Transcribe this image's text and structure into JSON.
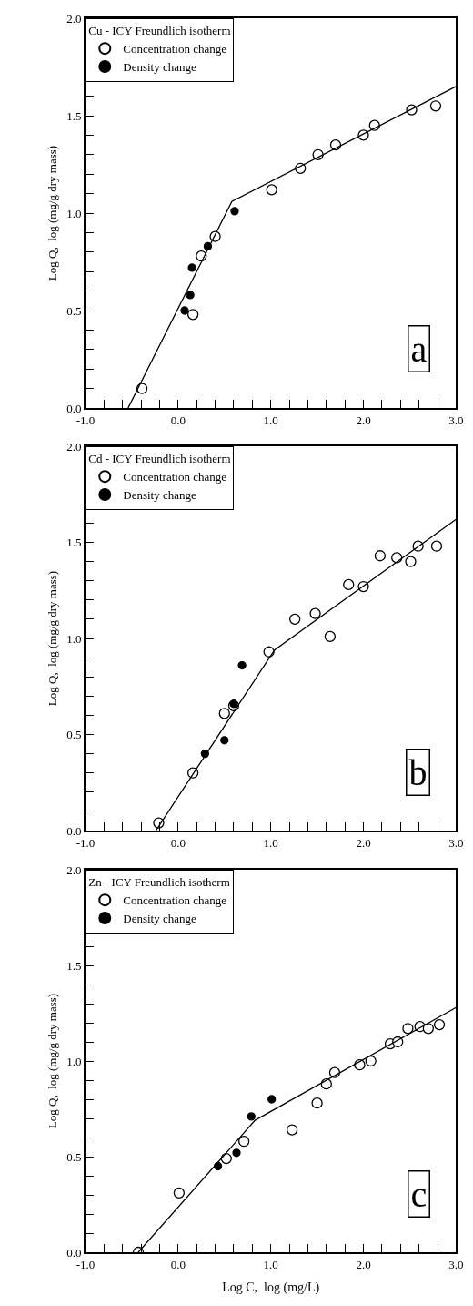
{
  "chart_data": [
    {
      "type": "scatter",
      "legend_title": "Cu - ICY Freundlich isotherm",
      "ylabel": "Log Q,  log (mg/g dry mass)",
      "annotations": [
        "a"
      ],
      "legend": "top left",
      "marker": "circle",
      "grid": false,
      "xlim": [
        -1,
        3
      ],
      "ylim": [
        0,
        2
      ],
      "xticks": [
        {
          "value": -1,
          "label": "-1.0"
        },
        {
          "value": -0.8,
          "label": null
        },
        {
          "value": -0.6,
          "label": null
        },
        {
          "value": -0.4,
          "label": null
        },
        {
          "value": -0.2,
          "label": null
        },
        {
          "value": 0,
          "label": "0.0"
        },
        {
          "value": 0.2,
          "label": null
        },
        {
          "value": 0.4,
          "label": null
        },
        {
          "value": 0.6,
          "label": null
        },
        {
          "value": 0.8,
          "label": null
        },
        {
          "value": 1,
          "label": "1.0"
        },
        {
          "value": 1.2,
          "label": null
        },
        {
          "value": 1.4,
          "label": null
        },
        {
          "value": 1.6,
          "label": null
        },
        {
          "value": 1.8,
          "label": null
        },
        {
          "value": 2,
          "label": "2.0"
        },
        {
          "value": 2.2,
          "label": null
        },
        {
          "value": 2.4,
          "label": null
        },
        {
          "value": 2.6,
          "label": null
        },
        {
          "value": 2.8,
          "label": null
        },
        {
          "value": 3,
          "label": "3.0"
        }
      ],
      "yticks": [
        {
          "value": 0,
          "label": "0.0"
        },
        {
          "value": 0.1,
          "label": null
        },
        {
          "value": 0.2,
          "label": null
        },
        {
          "value": 0.3,
          "label": null
        },
        {
          "value": 0.4,
          "label": null
        },
        {
          "value": 0.5,
          "label": "0.5"
        },
        {
          "value": 0.6,
          "label": null
        },
        {
          "value": 0.7,
          "label": null
        },
        {
          "value": 0.8,
          "label": null
        },
        {
          "value": 0.9,
          "label": null
        },
        {
          "value": 1,
          "label": "1.0"
        },
        {
          "value": 1.1,
          "label": null
        },
        {
          "value": 1.2,
          "label": null
        },
        {
          "value": 1.3,
          "label": null
        },
        {
          "value": 1.4,
          "label": null
        },
        {
          "value": 1.5,
          "label": "1.5"
        },
        {
          "value": 1.6,
          "label": null
        },
        {
          "value": 1.7,
          "label": null
        },
        {
          "value": 1.8,
          "label": null
        },
        {
          "value": 1.9,
          "label": null
        },
        {
          "value": 2,
          "label": "2.0"
        }
      ],
      "series": [
        {
          "name": "Concentration change",
          "color": "#ffffff",
          "x": [
            -0.39,
            0.16,
            0.25,
            0.4,
            1.01,
            1.32,
            1.51,
            1.7,
            2.0,
            2.12,
            2.52,
            2.78
          ],
          "values": [
            0.1,
            0.48,
            0.78,
            0.88,
            1.12,
            1.23,
            1.3,
            1.35,
            1.4,
            1.45,
            1.53,
            1.55
          ]
        },
        {
          "name": "Density change",
          "color": "#000000",
          "x": [
            0.07,
            0.13,
            0.15,
            0.32,
            0.61
          ],
          "values": [
            0.5,
            0.58,
            0.72,
            0.83,
            1.01
          ]
        },
        {
          "type": "line",
          "marker": "none",
          "color": "#000000",
          "x": [
            -0.54,
            0.58,
            3.0
          ],
          "values": [
            0,
            1.06,
            1.65
          ]
        }
      ]
    },
    {
      "type": "scatter",
      "legend_title": "Cd - ICY Freundlich isotherm",
      "ylabel": "Log Q,  log (mg/g dry mass)",
      "annotations": [
        "b"
      ],
      "legend": "top left",
      "marker": "circle",
      "grid": false,
      "xlim": [
        -1,
        3
      ],
      "ylim": [
        0,
        2
      ],
      "xticks": [
        {
          "value": -1,
          "label": "-1.0"
        },
        {
          "value": -0.8,
          "label": null
        },
        {
          "value": -0.6,
          "label": null
        },
        {
          "value": -0.4,
          "label": null
        },
        {
          "value": -0.2,
          "label": null
        },
        {
          "value": 0,
          "label": "0.0"
        },
        {
          "value": 0.2,
          "label": null
        },
        {
          "value": 0.4,
          "label": null
        },
        {
          "value": 0.6,
          "label": null
        },
        {
          "value": 0.8,
          "label": null
        },
        {
          "value": 1,
          "label": "1.0"
        },
        {
          "value": 1.2,
          "label": null
        },
        {
          "value": 1.4,
          "label": null
        },
        {
          "value": 1.6,
          "label": null
        },
        {
          "value": 1.8,
          "label": null
        },
        {
          "value": 2,
          "label": "2.0"
        },
        {
          "value": 2.2,
          "label": null
        },
        {
          "value": 2.4,
          "label": null
        },
        {
          "value": 2.6,
          "label": null
        },
        {
          "value": 2.8,
          "label": null
        },
        {
          "value": 3,
          "label": "3.0"
        }
      ],
      "yticks": [
        {
          "value": 0,
          "label": "0.0"
        },
        {
          "value": 0.1,
          "label": null
        },
        {
          "value": 0.2,
          "label": null
        },
        {
          "value": 0.3,
          "label": null
        },
        {
          "value": 0.4,
          "label": null
        },
        {
          "value": 0.5,
          "label": "0.5"
        },
        {
          "value": 0.6,
          "label": null
        },
        {
          "value": 0.7,
          "label": null
        },
        {
          "value": 0.8,
          "label": null
        },
        {
          "value": 0.9,
          "label": null
        },
        {
          "value": 1,
          "label": "1.0"
        },
        {
          "value": 1.1,
          "label": null
        },
        {
          "value": 1.2,
          "label": null
        },
        {
          "value": 1.3,
          "label": null
        },
        {
          "value": 1.4,
          "label": null
        },
        {
          "value": 1.5,
          "label": "1.5"
        },
        {
          "value": 1.6,
          "label": null
        },
        {
          "value": 1.7,
          "label": null
        },
        {
          "value": 1.8,
          "label": null
        },
        {
          "value": 1.9,
          "label": null
        },
        {
          "value": 2,
          "label": "2.0"
        }
      ],
      "series": [
        {
          "name": "Concentration change",
          "color": "#ffffff",
          "x": [
            -0.21,
            0.16,
            0.5,
            0.6,
            0.98,
            1.26,
            1.48,
            1.64,
            1.84,
            2.0,
            2.18,
            2.36,
            2.51,
            2.59,
            2.79
          ],
          "values": [
            0.04,
            0.3,
            0.61,
            0.65,
            0.93,
            1.1,
            1.13,
            1.01,
            1.28,
            1.27,
            1.43,
            1.42,
            1.4,
            1.48,
            1.48
          ]
        },
        {
          "name": "Density change",
          "color": "#000000",
          "x": [
            0.29,
            0.5,
            0.6,
            0.69
          ],
          "values": [
            0.4,
            0.47,
            0.66,
            0.86
          ]
        },
        {
          "type": "line",
          "marker": "none",
          "color": "#000000",
          "x": [
            -0.24,
            1.04,
            3.0
          ],
          "values": [
            0,
            0.94,
            1.62
          ]
        }
      ]
    },
    {
      "type": "scatter",
      "legend_title": "Zn - ICY Freundlich isotherm",
      "xlabel": "Log C,  log (mg/L)",
      "ylabel": "Log Q,  log (mg/g dry mass)",
      "annotations": [
        "c"
      ],
      "legend": "top left",
      "marker": "circle",
      "grid": false,
      "xlim": [
        -1,
        3
      ],
      "ylim": [
        0,
        2
      ],
      "xticks": [
        {
          "value": -1,
          "label": "-1.0"
        },
        {
          "value": -0.8,
          "label": null
        },
        {
          "value": -0.6,
          "label": null
        },
        {
          "value": -0.4,
          "label": null
        },
        {
          "value": -0.2,
          "label": null
        },
        {
          "value": 0,
          "label": "0.0"
        },
        {
          "value": 0.2,
          "label": null
        },
        {
          "value": 0.4,
          "label": null
        },
        {
          "value": 0.6,
          "label": null
        },
        {
          "value": 0.8,
          "label": null
        },
        {
          "value": 1,
          "label": "1.0"
        },
        {
          "value": 1.2,
          "label": null
        },
        {
          "value": 1.4,
          "label": null
        },
        {
          "value": 1.6,
          "label": null
        },
        {
          "value": 1.8,
          "label": null
        },
        {
          "value": 2,
          "label": "2.0"
        },
        {
          "value": 2.2,
          "label": null
        },
        {
          "value": 2.4,
          "label": null
        },
        {
          "value": 2.6,
          "label": null
        },
        {
          "value": 2.8,
          "label": null
        },
        {
          "value": 3,
          "label": "3.0"
        }
      ],
      "yticks": [
        {
          "value": 0,
          "label": "0.0"
        },
        {
          "value": 0.1,
          "label": null
        },
        {
          "value": 0.2,
          "label": null
        },
        {
          "value": 0.3,
          "label": null
        },
        {
          "value": 0.4,
          "label": null
        },
        {
          "value": 0.5,
          "label": "0.5"
        },
        {
          "value": 0.6,
          "label": null
        },
        {
          "value": 0.7,
          "label": null
        },
        {
          "value": 0.8,
          "label": null
        },
        {
          "value": 0.9,
          "label": null
        },
        {
          "value": 1,
          "label": "1.0"
        },
        {
          "value": 1.1,
          "label": null
        },
        {
          "value": 1.2,
          "label": null
        },
        {
          "value": 1.3,
          "label": null
        },
        {
          "value": 1.4,
          "label": null
        },
        {
          "value": 1.5,
          "label": "1.5"
        },
        {
          "value": 1.6,
          "label": null
        },
        {
          "value": 1.7,
          "label": null
        },
        {
          "value": 1.8,
          "label": null
        },
        {
          "value": 1.9,
          "label": null
        },
        {
          "value": 2,
          "label": "2.0"
        }
      ],
      "series": [
        {
          "name": "Concentration change",
          "color": "#ffffff",
          "x": [
            -0.43,
            0.01,
            0.52,
            0.71,
            1.23,
            1.5,
            1.6,
            1.69,
            1.96,
            2.08,
            2.29,
            2.37,
            2.48,
            2.61,
            2.7,
            2.82
          ],
          "values": [
            0.0,
            0.31,
            0.49,
            0.58,
            0.64,
            0.78,
            0.88,
            0.94,
            0.98,
            1.0,
            1.09,
            1.1,
            1.17,
            1.18,
            1.17,
            1.19
          ]
        },
        {
          "name": "Density change",
          "color": "#000000",
          "x": [
            0.43,
            0.63,
            0.79,
            1.01
          ],
          "values": [
            0.45,
            0.52,
            0.71,
            0.8
          ]
        },
        {
          "type": "line",
          "marker": "none",
          "color": "#000000",
          "x": [
            -0.43,
            0.83,
            3.0
          ],
          "values": [
            0,
            0.69,
            1.28
          ]
        }
      ]
    }
  ]
}
